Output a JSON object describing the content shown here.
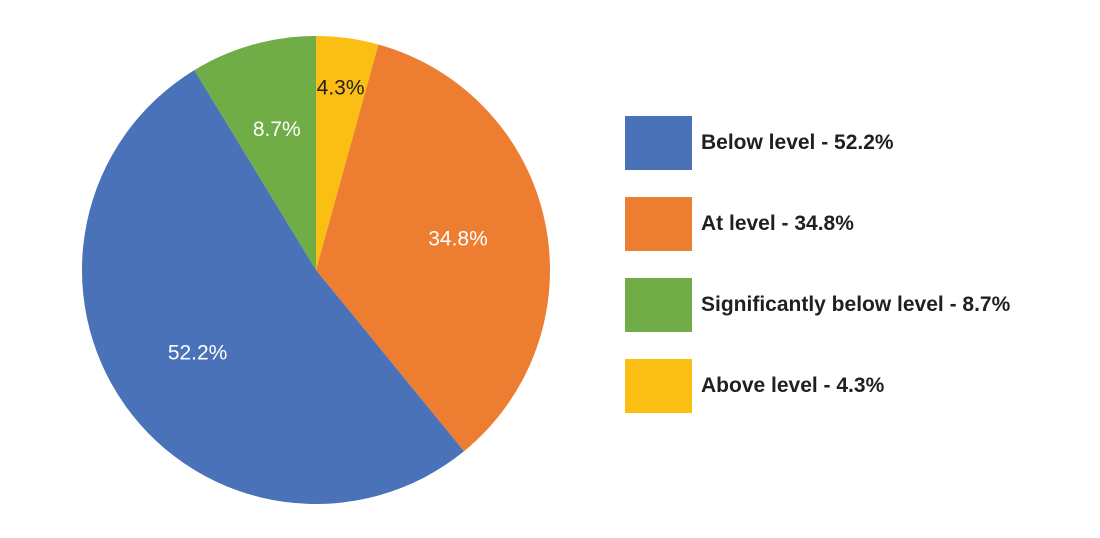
{
  "chart_data": {
    "type": "pie",
    "title": "",
    "slices": [
      {
        "label": "Below level",
        "legend": "Below level - 52.2%",
        "value": 52.2,
        "display": "52.2%",
        "color": "#4a72b8",
        "label_color": "#ffffff"
      },
      {
        "label": "At level",
        "legend": "At level - 34.8%",
        "value": 34.8,
        "display": "34.8%",
        "color": "#ed7d31",
        "label_color": "#ffffff"
      },
      {
        "label": "Significantly below level",
        "legend": "Significantly below level - 8.7%",
        "value": 8.7,
        "display": "8.7%",
        "color": "#70ad47",
        "label_color": "#ffffff"
      },
      {
        "label": "Above level",
        "legend": "Above level - 4.3%",
        "value": 4.3,
        "display": "4.3%",
        "color": "#fbbe12",
        "label_color": "#231f20"
      }
    ],
    "slice_order_clockwise_from_top": [
      "Above level",
      "At level",
      "Below level",
      "Significantly below level"
    ],
    "legend_position": "right"
  }
}
